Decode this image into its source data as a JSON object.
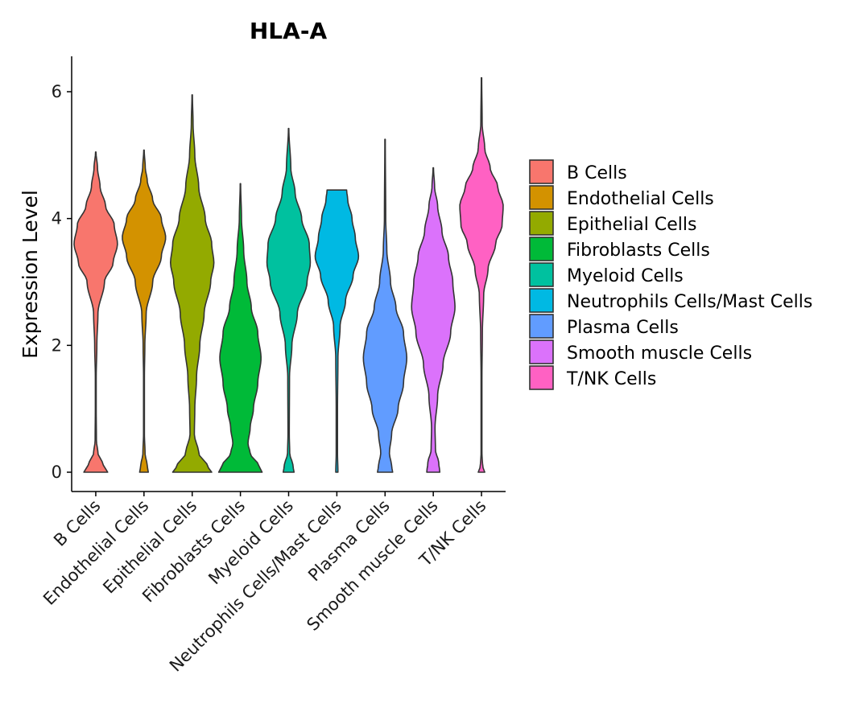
{
  "chart_data": {
    "type": "violin",
    "title": "HLA-A",
    "xlabel": "",
    "ylabel": "Expression Level",
    "ylim": [
      -0.3,
      6.55
    ],
    "yticks": [
      0,
      2,
      4,
      6
    ],
    "categories": [
      "B Cells",
      "Endothelial Cells",
      "Epithelial Cells",
      "Fibroblasts Cells",
      "Myeloid Cells",
      "Neutrophils Cells/Mast Cells",
      "Plasma Cells",
      "Smooth muscle Cells",
      "T/NK Cells"
    ],
    "legend": {
      "position": "right",
      "entries": [
        "B Cells",
        "Endothelial Cells",
        "Epithelial Cells",
        "Fibroblasts Cells",
        "Myeloid Cells",
        "Neutrophils Cells/Mast Cells",
        "Plasma Cells",
        "Smooth muscle Cells",
        "T/NK Cells"
      ]
    },
    "series": [
      {
        "name": "B Cells",
        "color": "#F8766D",
        "min": 0,
        "max": 5.05,
        "profile": [
          [
            0,
            0.55
          ],
          [
            0.05,
            0.45
          ],
          [
            0.15,
            0.3
          ],
          [
            0.3,
            0.1
          ],
          [
            0.5,
            0.03
          ],
          [
            1,
            0.02
          ],
          [
            1.5,
            0.02
          ],
          [
            2,
            0.05
          ],
          [
            2.5,
            0.1
          ],
          [
            3,
            0.4
          ],
          [
            3.3,
            0.8
          ],
          [
            3.6,
            1
          ],
          [
            3.9,
            0.85
          ],
          [
            4.2,
            0.45
          ],
          [
            4.5,
            0.2
          ],
          [
            4.8,
            0.08
          ],
          [
            5.05,
            0.01
          ]
        ]
      },
      {
        "name": "Endothelial Cells",
        "color": "#D39200",
        "min": 0,
        "max": 5.08,
        "profile": [
          [
            0,
            0.2
          ],
          [
            0.1,
            0.15
          ],
          [
            0.3,
            0.05
          ],
          [
            0.6,
            0.02
          ],
          [
            1.5,
            0.02
          ],
          [
            2,
            0.04
          ],
          [
            2.5,
            0.1
          ],
          [
            3,
            0.4
          ],
          [
            3.4,
            0.8
          ],
          [
            3.7,
            1
          ],
          [
            4,
            0.8
          ],
          [
            4.3,
            0.4
          ],
          [
            4.6,
            0.15
          ],
          [
            4.8,
            0.06
          ],
          [
            5.08,
            0.01
          ]
        ]
      },
      {
        "name": "Epithelial Cells",
        "color": "#93AA00",
        "min": 0,
        "max": 5.95,
        "profile": [
          [
            0,
            0.9
          ],
          [
            0.1,
            0.7
          ],
          [
            0.3,
            0.3
          ],
          [
            0.6,
            0.1
          ],
          [
            1,
            0.12
          ],
          [
            1.5,
            0.2
          ],
          [
            2,
            0.35
          ],
          [
            2.5,
            0.55
          ],
          [
            3,
            0.85
          ],
          [
            3.3,
            1
          ],
          [
            3.6,
            0.9
          ],
          [
            4,
            0.6
          ],
          [
            4.5,
            0.3
          ],
          [
            5,
            0.12
          ],
          [
            5.5,
            0.04
          ],
          [
            5.95,
            0.01
          ]
        ]
      },
      {
        "name": "Fibroblasts Cells",
        "color": "#00BA38",
        "min": 0,
        "max": 4.55,
        "profile": [
          [
            0,
            1
          ],
          [
            0.1,
            0.85
          ],
          [
            0.3,
            0.45
          ],
          [
            0.45,
            0.35
          ],
          [
            0.7,
            0.45
          ],
          [
            1,
            0.6
          ],
          [
            1.4,
            0.8
          ],
          [
            1.8,
            0.95
          ],
          [
            2.2,
            0.8
          ],
          [
            2.6,
            0.5
          ],
          [
            3,
            0.3
          ],
          [
            3.5,
            0.15
          ],
          [
            4,
            0.05
          ],
          [
            4.55,
            0.01
          ]
        ]
      },
      {
        "name": "Myeloid Cells",
        "color": "#00C19F",
        "min": 0,
        "max": 5.42,
        "profile": [
          [
            0,
            0.25
          ],
          [
            0.1,
            0.2
          ],
          [
            0.3,
            0.05
          ],
          [
            0.6,
            0.03
          ],
          [
            1.5,
            0.04
          ],
          [
            2,
            0.15
          ],
          [
            2.5,
            0.4
          ],
          [
            3,
            0.85
          ],
          [
            3.3,
            1
          ],
          [
            3.6,
            0.95
          ],
          [
            4,
            0.6
          ],
          [
            4.4,
            0.3
          ],
          [
            4.8,
            0.1
          ],
          [
            5.42,
            0.01
          ]
        ]
      },
      {
        "name": "Neutrophils Cells/Mast Cells",
        "color": "#00B9E3",
        "min": 0,
        "max": 4.45,
        "profile": [
          [
            0,
            0.05
          ],
          [
            0.3,
            0.03
          ],
          [
            1,
            0.03
          ],
          [
            1.8,
            0.05
          ],
          [
            2.3,
            0.15
          ],
          [
            2.7,
            0.4
          ],
          [
            3.1,
            0.75
          ],
          [
            3.4,
            1
          ],
          [
            3.7,
            0.85
          ],
          [
            4,
            0.7
          ],
          [
            4.3,
            0.5
          ],
          [
            4.45,
            0.45
          ]
        ]
      },
      {
        "name": "Plasma Cells",
        "color": "#619CFF",
        "min": 0,
        "max": 5.25,
        "profile": [
          [
            0,
            0.35
          ],
          [
            0.1,
            0.3
          ],
          [
            0.3,
            0.2
          ],
          [
            0.6,
            0.3
          ],
          [
            1,
            0.6
          ],
          [
            1.4,
            0.85
          ],
          [
            1.8,
            1
          ],
          [
            2.2,
            0.85
          ],
          [
            2.6,
            0.5
          ],
          [
            3,
            0.25
          ],
          [
            3.5,
            0.08
          ],
          [
            4,
            0.03
          ],
          [
            5.25,
            0.01
          ]
        ]
      },
      {
        "name": "Smooth muscle Cells",
        "color": "#DB72FB",
        "min": 0,
        "max": 4.8,
        "profile": [
          [
            0,
            0.3
          ],
          [
            0.15,
            0.25
          ],
          [
            0.35,
            0.1
          ],
          [
            0.7,
            0.08
          ],
          [
            1.2,
            0.2
          ],
          [
            1.7,
            0.45
          ],
          [
            2.2,
            0.8
          ],
          [
            2.6,
            1
          ],
          [
            3,
            0.9
          ],
          [
            3.4,
            0.7
          ],
          [
            3.8,
            0.4
          ],
          [
            4.2,
            0.2
          ],
          [
            4.5,
            0.06
          ],
          [
            4.8,
            0.01
          ]
        ]
      },
      {
        "name": "T/NK Cells",
        "color": "#FF61C3",
        "min": 0,
        "max": 6.22,
        "profile": [
          [
            0,
            0.15
          ],
          [
            0.1,
            0.05
          ],
          [
            0.3,
            0.02
          ],
          [
            1.5,
            0.02
          ],
          [
            2.2,
            0.04
          ],
          [
            2.8,
            0.1
          ],
          [
            3.2,
            0.3
          ],
          [
            3.6,
            0.65
          ],
          [
            3.9,
            0.95
          ],
          [
            4.2,
            1
          ],
          [
            4.5,
            0.75
          ],
          [
            4.8,
            0.4
          ],
          [
            5.1,
            0.15
          ],
          [
            5.5,
            0.03
          ],
          [
            6.22,
            0.01
          ]
        ]
      }
    ]
  }
}
